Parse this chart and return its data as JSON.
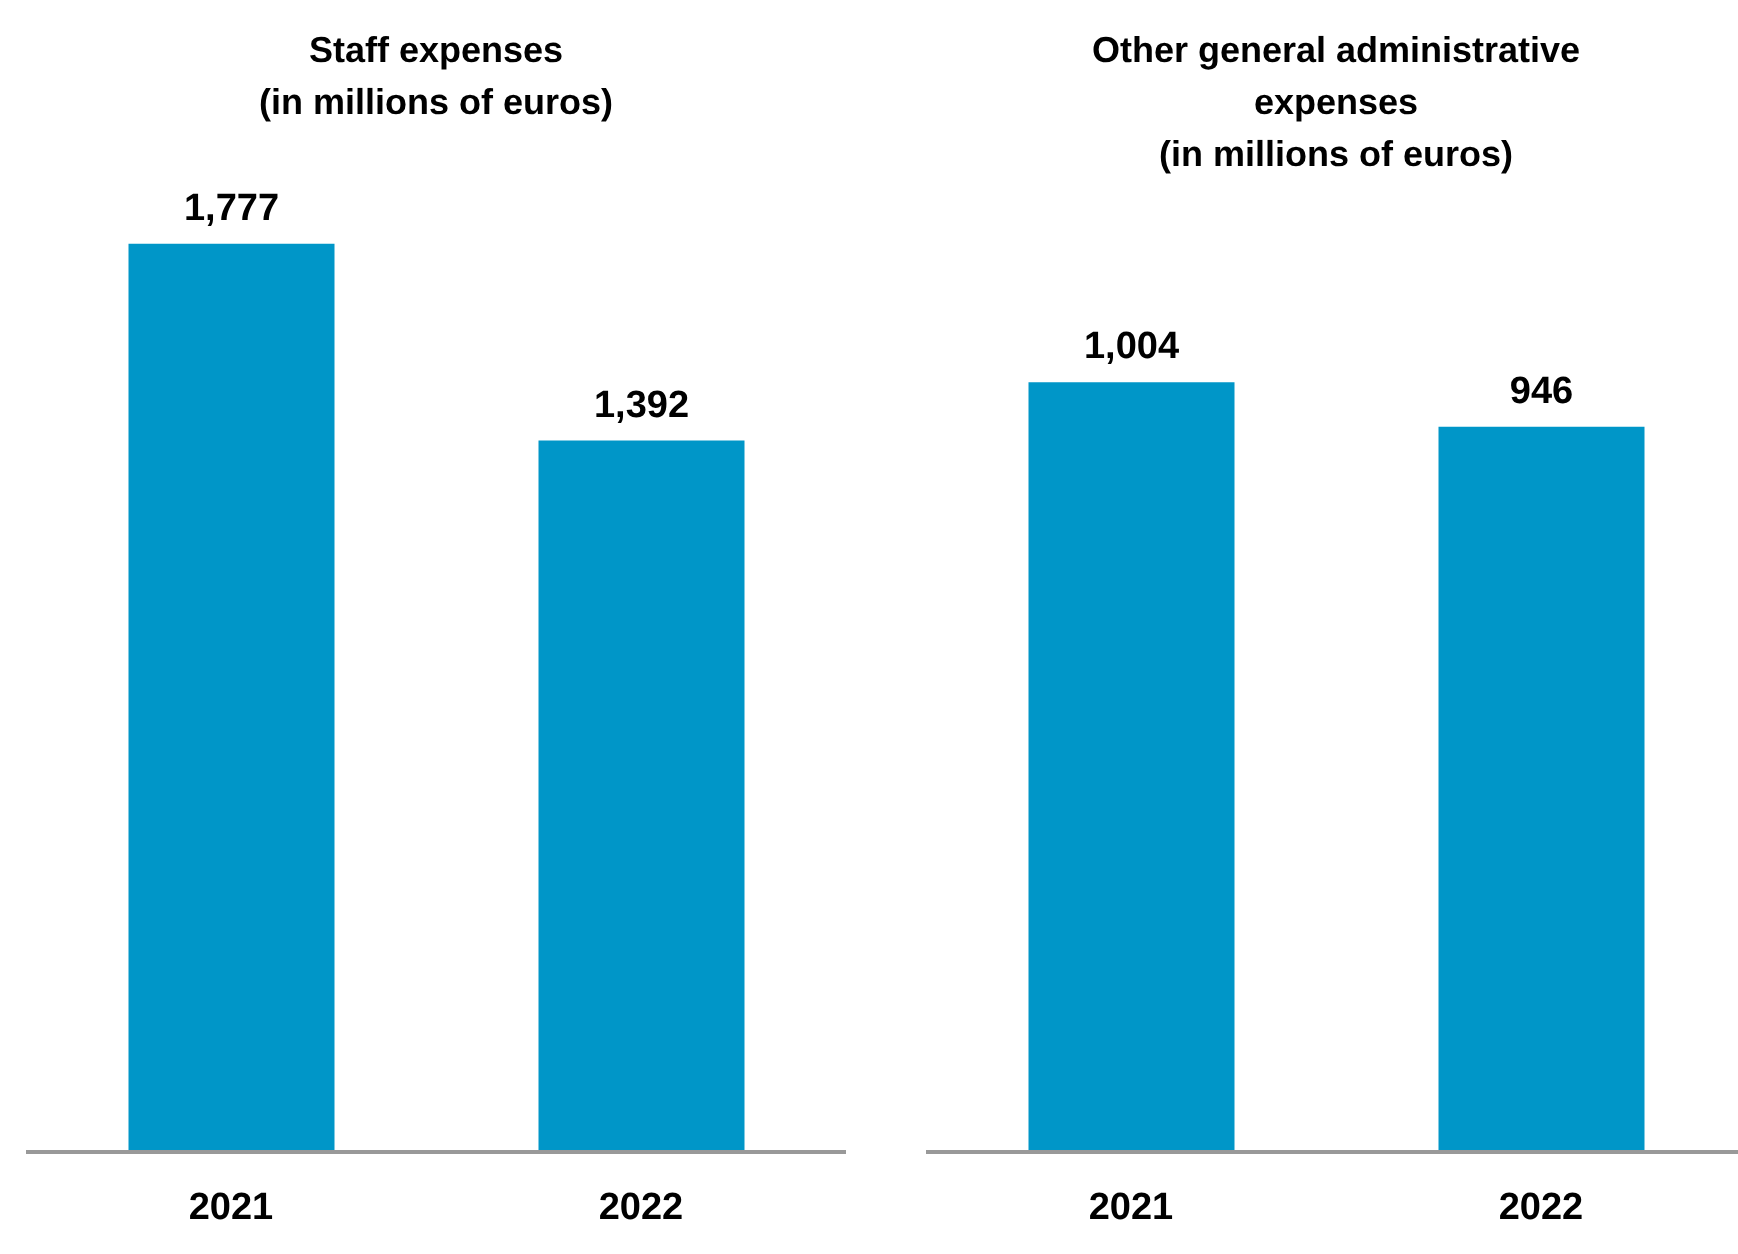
{
  "chart_data": [
    {
      "type": "bar",
      "title": "Staff expenses\n(in millions of euros)",
      "categories": [
        "2021",
        "2022"
      ],
      "values": [
        1777,
        1392
      ],
      "value_labels": [
        "1,777",
        "1,392"
      ],
      "color": "#0096c8"
    },
    {
      "type": "bar",
      "title": "Other general administrative\nexpenses\n(in millions of euros)",
      "categories": [
        "2021",
        "2022"
      ],
      "values": [
        1004,
        946
      ],
      "value_labels": [
        "1,004",
        "946"
      ],
      "color": "#0096c8"
    }
  ]
}
